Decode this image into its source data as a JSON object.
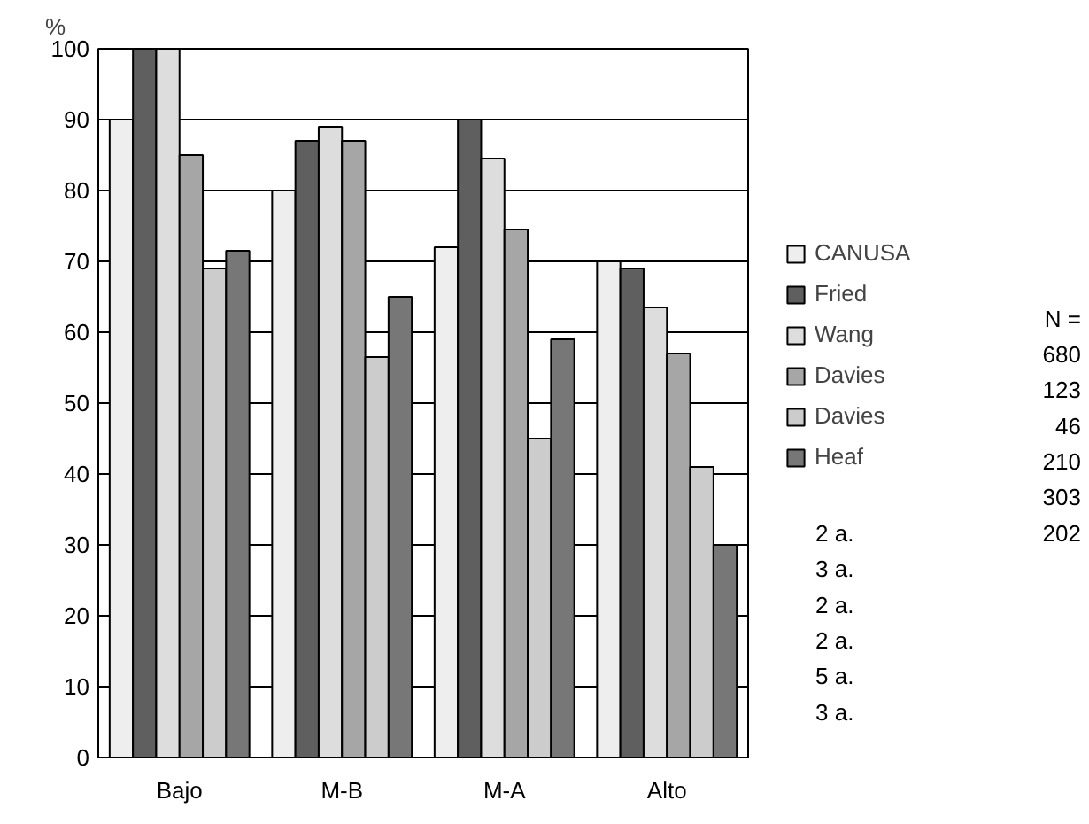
{
  "chart_data": {
    "type": "bar",
    "ylabel": "%",
    "categories": [
      "Bajo",
      "M-B",
      "M-A",
      "Alto"
    ],
    "series": [
      {
        "name": "CANUSA",
        "color": "#eeeeee",
        "values": [
          90,
          80,
          72,
          70
        ]
      },
      {
        "name": "Fried",
        "color": "#5f5f5f",
        "values": [
          100,
          87,
          90,
          69
        ]
      },
      {
        "name": "Wang",
        "color": "#dddddd",
        "values": [
          100,
          89,
          84.5,
          63.5
        ]
      },
      {
        "name": "Davies",
        "color": "#a6a6a6",
        "values": [
          85,
          87,
          74.5,
          57
        ]
      },
      {
        "name": "Davies",
        "color": "#cccccc",
        "values": [
          69,
          56.5,
          45,
          41
        ]
      },
      {
        "name": "Heaf",
        "color": "#777777",
        "values": [
          71.5,
          65,
          59,
          30
        ]
      }
    ],
    "ylim": [
      0,
      100
    ],
    "yticks": [
      0,
      10,
      20,
      30,
      40,
      50,
      60,
      70,
      80,
      90,
      100
    ],
    "grid": "y",
    "legend": "right",
    "annotations": [
      "N =",
      "680",
      "123",
      "46",
      "210",
      "303",
      "202",
      "2 a.",
      "3 a.",
      "2 a.",
      "2 a.",
      "5 a.",
      "3 a."
    ]
  }
}
